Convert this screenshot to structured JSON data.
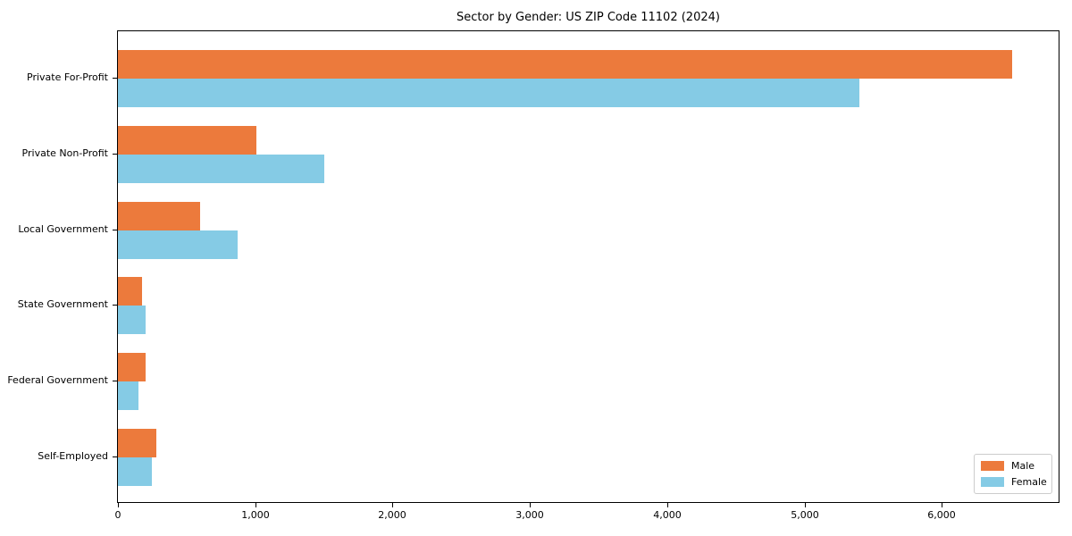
{
  "chart_data": {
    "type": "bar",
    "orientation": "horizontal",
    "title": "Sector by Gender: US ZIP Code 11102 (2024)",
    "categories": [
      "Private For-Profit",
      "Private Non-Profit",
      "Local Government",
      "State Government",
      "Federal Government",
      "Self-Employed"
    ],
    "series": [
      {
        "name": "Male",
        "color": "#ec7a3c",
        "values": [
          6510,
          1010,
          600,
          175,
          200,
          280
        ]
      },
      {
        "name": "Female",
        "color": "#85cbe5",
        "values": [
          5400,
          1500,
          870,
          200,
          150,
          250
        ]
      }
    ],
    "xlabel": "",
    "ylabel": "",
    "xlim": [
      0,
      6850
    ],
    "x_ticks": [
      0,
      1000,
      2000,
      3000,
      4000,
      5000,
      6000
    ],
    "x_tick_labels": [
      "0",
      "1,000",
      "2,000",
      "3,000",
      "4,000",
      "5,000",
      "6,000"
    ],
    "grid": false,
    "legend_position": "lower right",
    "background_color": "#ffffff",
    "spine_color": "#000000"
  }
}
